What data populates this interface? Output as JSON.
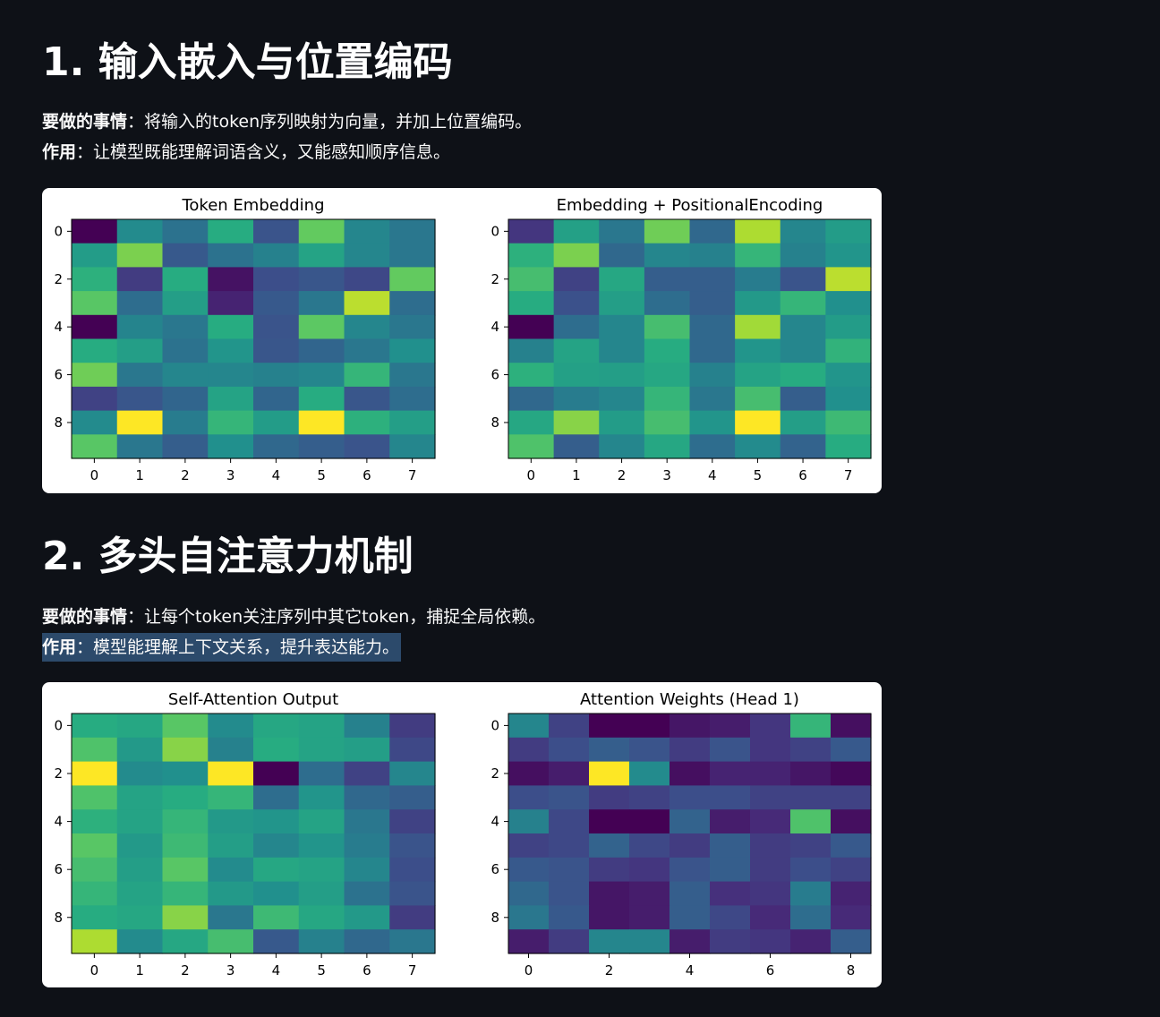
{
  "sections": [
    {
      "title": "1. 输入嵌入与位置编码",
      "what_label": "要做的事情",
      "what_sep": "：",
      "what_text": "将输入的token序列映射为向量，并加上位置编码。",
      "role_label": "作用",
      "role_sep": "：",
      "role_text": "让模型既能理解词语含义，又能感知顺序信息。"
    },
    {
      "title": "2. 多头自注意力机制",
      "what_label": "要做的事情",
      "what_sep": "：",
      "what_text": "让每个token关注序列中其它token，捕捉全局依赖。",
      "role_label": "作用",
      "role_sep": "：",
      "role_text": "模型能理解上下文关系，提升表达能力。"
    }
  ],
  "chart_data": [
    {
      "type": "heatmap",
      "title": "Token Embedding",
      "colormap": "viridis",
      "x_ticks": [
        0,
        1,
        2,
        3,
        4,
        5,
        6,
        7
      ],
      "y_ticks": [
        0,
        2,
        4,
        6,
        8
      ],
      "values": [
        [
          0.0,
          0.48,
          0.38,
          0.62,
          0.26,
          0.76,
          0.46,
          0.4
        ],
        [
          0.55,
          0.8,
          0.28,
          0.38,
          0.44,
          0.58,
          0.46,
          0.4
        ],
        [
          0.64,
          0.18,
          0.62,
          0.05,
          0.24,
          0.27,
          0.22,
          0.76
        ],
        [
          0.74,
          0.36,
          0.56,
          0.1,
          0.28,
          0.4,
          0.9,
          0.36
        ],
        [
          0.0,
          0.45,
          0.4,
          0.62,
          0.26,
          0.75,
          0.46,
          0.4
        ],
        [
          0.62,
          0.56,
          0.38,
          0.52,
          0.27,
          0.33,
          0.4,
          0.5
        ],
        [
          0.78,
          0.4,
          0.46,
          0.46,
          0.44,
          0.46,
          0.66,
          0.4
        ],
        [
          0.2,
          0.27,
          0.33,
          0.58,
          0.33,
          0.62,
          0.27,
          0.36
        ],
        [
          0.48,
          1.0,
          0.42,
          0.66,
          0.55,
          1.0,
          0.64,
          0.56
        ],
        [
          0.74,
          0.4,
          0.3,
          0.5,
          0.34,
          0.3,
          0.26,
          0.46
        ]
      ]
    },
    {
      "type": "heatmap",
      "title": "Embedding + PositionalEncoding",
      "colormap": "viridis",
      "x_ticks": [
        0,
        1,
        2,
        3,
        4,
        5,
        6,
        7
      ],
      "y_ticks": [
        0,
        2,
        4,
        6,
        8
      ],
      "values": [
        [
          0.16,
          0.57,
          0.4,
          0.78,
          0.34,
          0.88,
          0.46,
          0.55
        ],
        [
          0.64,
          0.8,
          0.34,
          0.46,
          0.44,
          0.66,
          0.44,
          0.52
        ],
        [
          0.7,
          0.2,
          0.6,
          0.3,
          0.3,
          0.42,
          0.26,
          0.9
        ],
        [
          0.62,
          0.25,
          0.56,
          0.36,
          0.3,
          0.54,
          0.66,
          0.5
        ],
        [
          0.0,
          0.36,
          0.46,
          0.7,
          0.34,
          0.86,
          0.46,
          0.55
        ],
        [
          0.44,
          0.58,
          0.46,
          0.62,
          0.34,
          0.52,
          0.46,
          0.65
        ],
        [
          0.64,
          0.57,
          0.56,
          0.6,
          0.44,
          0.58,
          0.62,
          0.52
        ],
        [
          0.34,
          0.42,
          0.46,
          0.66,
          0.4,
          0.7,
          0.3,
          0.5
        ],
        [
          0.6,
          0.82,
          0.55,
          0.7,
          0.52,
          1.0,
          0.56,
          0.68
        ],
        [
          0.72,
          0.3,
          0.46,
          0.6,
          0.36,
          0.48,
          0.32,
          0.62
        ]
      ]
    },
    {
      "type": "heatmap",
      "title": "Self-Attention Output",
      "colormap": "viridis",
      "x_ticks": [
        0,
        1,
        2,
        3,
        4,
        5,
        6,
        7
      ],
      "y_ticks": [
        0,
        2,
        4,
        6,
        8
      ],
      "values": [
        [
          0.62,
          0.6,
          0.74,
          0.48,
          0.6,
          0.58,
          0.44,
          0.18
        ],
        [
          0.72,
          0.54,
          0.82,
          0.44,
          0.62,
          0.58,
          0.56,
          0.22
        ],
        [
          1.0,
          0.48,
          0.5,
          1.0,
          0.0,
          0.36,
          0.2,
          0.46
        ],
        [
          0.72,
          0.58,
          0.62,
          0.66,
          0.36,
          0.52,
          0.34,
          0.3
        ],
        [
          0.64,
          0.58,
          0.66,
          0.54,
          0.52,
          0.58,
          0.4,
          0.2
        ],
        [
          0.74,
          0.54,
          0.68,
          0.56,
          0.46,
          0.52,
          0.42,
          0.26
        ],
        [
          0.7,
          0.56,
          0.74,
          0.48,
          0.6,
          0.58,
          0.46,
          0.24
        ],
        [
          0.66,
          0.58,
          0.66,
          0.54,
          0.5,
          0.56,
          0.38,
          0.26
        ],
        [
          0.62,
          0.6,
          0.82,
          0.4,
          0.68,
          0.6,
          0.54,
          0.18
        ],
        [
          0.88,
          0.48,
          0.6,
          0.7,
          0.28,
          0.44,
          0.34,
          0.4
        ]
      ]
    },
    {
      "type": "heatmap",
      "title": "Attention Weights (Head 1)",
      "colormap": "viridis",
      "x_ticks": [
        0,
        2,
        4,
        6,
        8
      ],
      "y_ticks": [
        0,
        2,
        4,
        6,
        8
      ],
      "values": [
        [
          0.46,
          0.2,
          0.0,
          0.0,
          0.06,
          0.08,
          0.16,
          0.66,
          0.04
        ],
        [
          0.18,
          0.24,
          0.3,
          0.26,
          0.18,
          0.26,
          0.16,
          0.2,
          0.28
        ],
        [
          0.04,
          0.08,
          1.0,
          0.48,
          0.04,
          0.1,
          0.1,
          0.06,
          0.02
        ],
        [
          0.24,
          0.26,
          0.18,
          0.2,
          0.24,
          0.24,
          0.2,
          0.2,
          0.2
        ],
        [
          0.44,
          0.22,
          0.0,
          0.0,
          0.32,
          0.08,
          0.12,
          0.72,
          0.04
        ],
        [
          0.2,
          0.22,
          0.32,
          0.22,
          0.18,
          0.3,
          0.18,
          0.2,
          0.28
        ],
        [
          0.28,
          0.26,
          0.18,
          0.16,
          0.26,
          0.3,
          0.18,
          0.24,
          0.2
        ],
        [
          0.34,
          0.26,
          0.06,
          0.08,
          0.3,
          0.14,
          0.16,
          0.42,
          0.1
        ],
        [
          0.4,
          0.28,
          0.06,
          0.08,
          0.3,
          0.22,
          0.12,
          0.36,
          0.12
        ],
        [
          0.08,
          0.18,
          0.46,
          0.46,
          0.08,
          0.18,
          0.16,
          0.1,
          0.3
        ]
      ]
    }
  ]
}
